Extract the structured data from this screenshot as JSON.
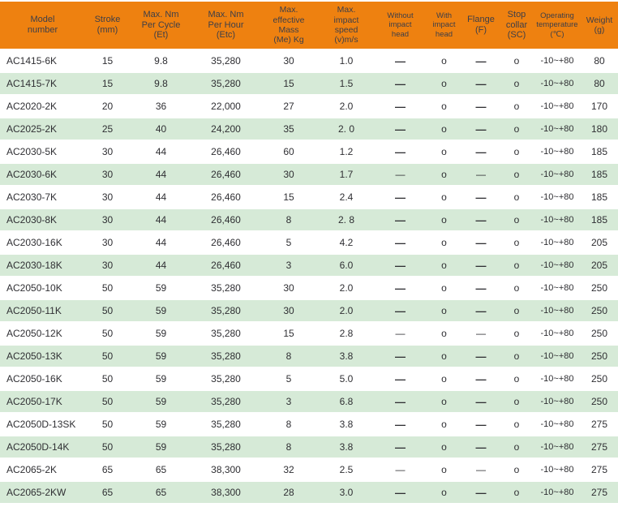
{
  "colors": {
    "header_bg": "#ee8110",
    "row_alt_bg": "#d6ead7",
    "row_bg": "#ffffff",
    "header_text": "#3d3e48",
    "body_text": "#2f2f33"
  },
  "table": {
    "columns": [
      {
        "id": "model",
        "label": "Model\nnumber"
      },
      {
        "id": "stroke",
        "label": "Stroke\n(mm)"
      },
      {
        "id": "et",
        "label": "Max. Nm\nPer Cycle\n(Et)"
      },
      {
        "id": "etc",
        "label": "Max. Nm\nPer Hour\n(Etc)"
      },
      {
        "id": "mass",
        "label": "Max.\neffective\nMass\n(Me) Kg"
      },
      {
        "id": "speed",
        "label": "Max.\nimpact\nspeed\n(v)m/s"
      },
      {
        "id": "without_head",
        "label": "Without\nimpact\nhead"
      },
      {
        "id": "with_head",
        "label": "With\nimpact\nhead"
      },
      {
        "id": "flange",
        "label": "Flange\n(F)"
      },
      {
        "id": "stop_collar",
        "label": "Stop\ncollar\n(SC)"
      },
      {
        "id": "temp",
        "label": "Operating\ntemperature\n(℃)"
      },
      {
        "id": "weight",
        "label": "Weight\n(g)"
      }
    ],
    "rows": [
      {
        "model": "AC1415-6K",
        "stroke": "15",
        "et": "9.8",
        "etc": "35,280",
        "mass": "30",
        "speed": "1.0",
        "without_head": "—",
        "with_head": "o",
        "flange": "—",
        "stop_collar": "o",
        "temp": "-10~+80",
        "weight": "80"
      },
      {
        "model": "AC1415-7K",
        "stroke": "15",
        "et": "9.8",
        "etc": "35,280",
        "mass": "15",
        "speed": "1.5",
        "without_head": "—",
        "with_head": "o",
        "flange": "—",
        "stop_collar": "o",
        "temp": "-10~+80",
        "weight": "80"
      },
      {
        "model": "AC2020-2K",
        "stroke": "20",
        "et": "36",
        "etc": "22,000",
        "mass": "27",
        "speed": "2.0",
        "without_head": "—",
        "with_head": "o",
        "flange": "—",
        "stop_collar": "o",
        "temp": "-10~+80",
        "weight": "170"
      },
      {
        "model": "AC2025-2K",
        "stroke": "25",
        "et": "40",
        "etc": "24,200",
        "mass": "35",
        "speed": "2. 0",
        "without_head": "—",
        "with_head": "o",
        "flange": "—",
        "stop_collar": "o",
        "temp": "-10~+80",
        "weight": "180"
      },
      {
        "model": "AC2030-5K",
        "stroke": "30",
        "et": "44",
        "etc": "26,460",
        "mass": "60",
        "speed": "1.2",
        "without_head": "—",
        "with_head": "o",
        "flange": "—",
        "stop_collar": "o",
        "temp": "-10~+80",
        "weight": "185"
      },
      {
        "model": "AC2030-6K",
        "stroke": "30",
        "et": "44",
        "etc": "26,460",
        "mass": "30",
        "speed": "1.7",
        "without_head": "—",
        "with_head": "o",
        "flange": "—",
        "stop_collar": "o",
        "temp": "-10~+80",
        "weight": "185",
        "dash_style": "thin"
      },
      {
        "model": "AC2030-7K",
        "stroke": "30",
        "et": "44",
        "etc": "26,460",
        "mass": "15",
        "speed": "2.4",
        "without_head": "—",
        "with_head": "o",
        "flange": "—",
        "stop_collar": "o",
        "temp": "-10~+80",
        "weight": "185"
      },
      {
        "model": "AC2030-8K",
        "stroke": "30",
        "et": "44",
        "etc": "26,460",
        "mass": "8",
        "speed": "2. 8",
        "without_head": "—",
        "with_head": "o",
        "flange": "—",
        "stop_collar": "o",
        "temp": "-10~+80",
        "weight": "185"
      },
      {
        "model": "AC2030-16K",
        "stroke": "30",
        "et": "44",
        "etc": "26,460",
        "mass": "5",
        "speed": "4.2",
        "without_head": "—",
        "with_head": "o",
        "flange": "—",
        "stop_collar": "o",
        "temp": "-10~+80",
        "weight": "205"
      },
      {
        "model": "AC2030-18K",
        "stroke": "30",
        "et": "44",
        "etc": "26,460",
        "mass": "3",
        "speed": "6.0",
        "without_head": "—",
        "with_head": "o",
        "flange": "—",
        "stop_collar": "o",
        "temp": "-10~+80",
        "weight": "205"
      },
      {
        "model": "AC2050-10K",
        "stroke": "50",
        "et": "59",
        "etc": "35,280",
        "mass": "30",
        "speed": "2.0",
        "without_head": "—",
        "with_head": "o",
        "flange": "—",
        "stop_collar": "o",
        "temp": "-10~+80",
        "weight": "250"
      },
      {
        "model": "AC2050-11K",
        "stroke": "50",
        "et": "59",
        "etc": "35,280",
        "mass": "30",
        "speed": "2.0",
        "without_head": "—",
        "with_head": "o",
        "flange": "—",
        "stop_collar": "o",
        "temp": "-10~+80",
        "weight": "250"
      },
      {
        "model": "AC2050-12K",
        "stroke": "50",
        "et": "59",
        "etc": "35,280",
        "mass": "15",
        "speed": "2.8",
        "without_head": "—",
        "with_head": "o",
        "flange": "—",
        "stop_collar": "o",
        "temp": "-10~+80",
        "weight": "250",
        "dash_style": "thin"
      },
      {
        "model": "AC2050-13K",
        "stroke": "50",
        "et": "59",
        "etc": "35,280",
        "mass": "8",
        "speed": "3.8",
        "without_head": "—",
        "with_head": "o",
        "flange": "—",
        "stop_collar": "o",
        "temp": "-10~+80",
        "weight": "250"
      },
      {
        "model": "AC2050-16K",
        "stroke": "50",
        "et": "59",
        "etc": "35,280",
        "mass": "5",
        "speed": "5.0",
        "without_head": "—",
        "with_head": "o",
        "flange": "—",
        "stop_collar": "o",
        "temp": "-10~+80",
        "weight": "250"
      },
      {
        "model": "AC2050-17K",
        "stroke": "50",
        "et": "59",
        "etc": "35,280",
        "mass": "3",
        "speed": "6.8",
        "without_head": "—",
        "with_head": "o",
        "flange": "—",
        "stop_collar": "o",
        "temp": "-10~+80",
        "weight": "250"
      },
      {
        "model": "AC2050D-13SK",
        "stroke": "50",
        "et": "59",
        "etc": "35,280",
        "mass": "8",
        "speed": "3.8",
        "without_head": "—",
        "with_head": "o",
        "flange": "—",
        "stop_collar": "o",
        "temp": "-10~+80",
        "weight": "275"
      },
      {
        "model": "AC2050D-14K",
        "stroke": "50",
        "et": "59",
        "etc": "35,280",
        "mass": "8",
        "speed": "3.8",
        "without_head": "—",
        "with_head": "o",
        "flange": "—",
        "stop_collar": "o",
        "temp": "-10~+80",
        "weight": "275"
      },
      {
        "model": "AC2065-2K",
        "stroke": "65",
        "et": "65",
        "etc": "38,300",
        "mass": "32",
        "speed": "2.5",
        "without_head": "—",
        "with_head": "o",
        "flange": "—",
        "stop_collar": "o",
        "temp": "-10~+80",
        "weight": "275",
        "dash_style": "thin"
      },
      {
        "model": "AC2065-2KW",
        "stroke": "65",
        "et": "65",
        "etc": "38,300",
        "mass": "28",
        "speed": "3.0",
        "without_head": "—",
        "with_head": "o",
        "flange": "—",
        "stop_collar": "o",
        "temp": "-10~+80",
        "weight": "275"
      }
    ]
  }
}
